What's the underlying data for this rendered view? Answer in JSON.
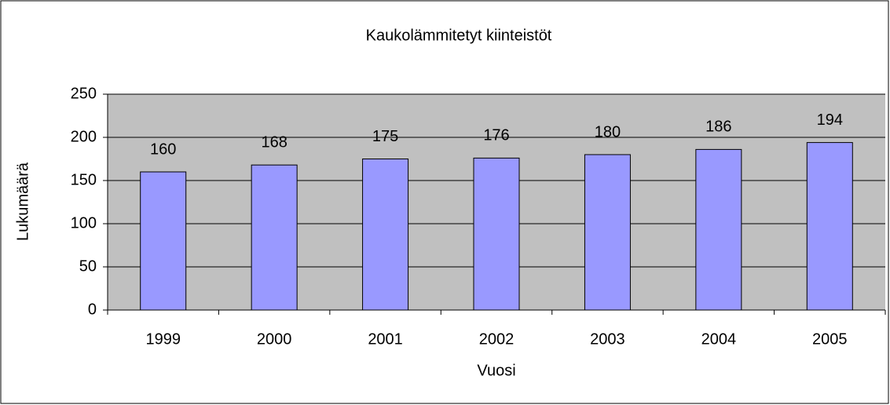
{
  "chart_data": {
    "type": "bar",
    "title": "Kaukolämmitetyt kiinteistöt",
    "x_label": "Vuosi",
    "y_label": "Lukumäärä",
    "categories": [
      "1999",
      "2000",
      "2001",
      "2002",
      "2003",
      "2004",
      "2005"
    ],
    "values": [
      160,
      168,
      175,
      176,
      180,
      186,
      194
    ],
    "color": "#9999ff",
    "ylim": [
      0,
      250
    ],
    "yticks": [
      0,
      50,
      100,
      150,
      200,
      250
    ],
    "grid": true
  }
}
